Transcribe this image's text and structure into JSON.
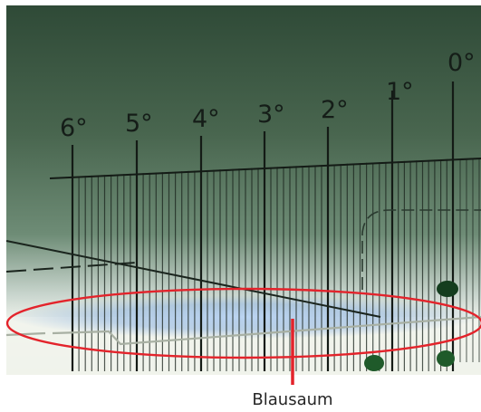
{
  "scale": {
    "labels": [
      "6°",
      "5°",
      "4°",
      "3°",
      "2°",
      "1°",
      "0°"
    ]
  },
  "annotation": {
    "caption": "Blausaum",
    "highlight_color": "#e3232b"
  },
  "colors": {
    "photo_top": "#2f4a37",
    "photo_mid": "#5f7d69",
    "photo_bright": "#f3f5ef",
    "fringe_blue": "#a9c6e8",
    "ink": "#151d18",
    "dot_green": "#143d1e"
  }
}
